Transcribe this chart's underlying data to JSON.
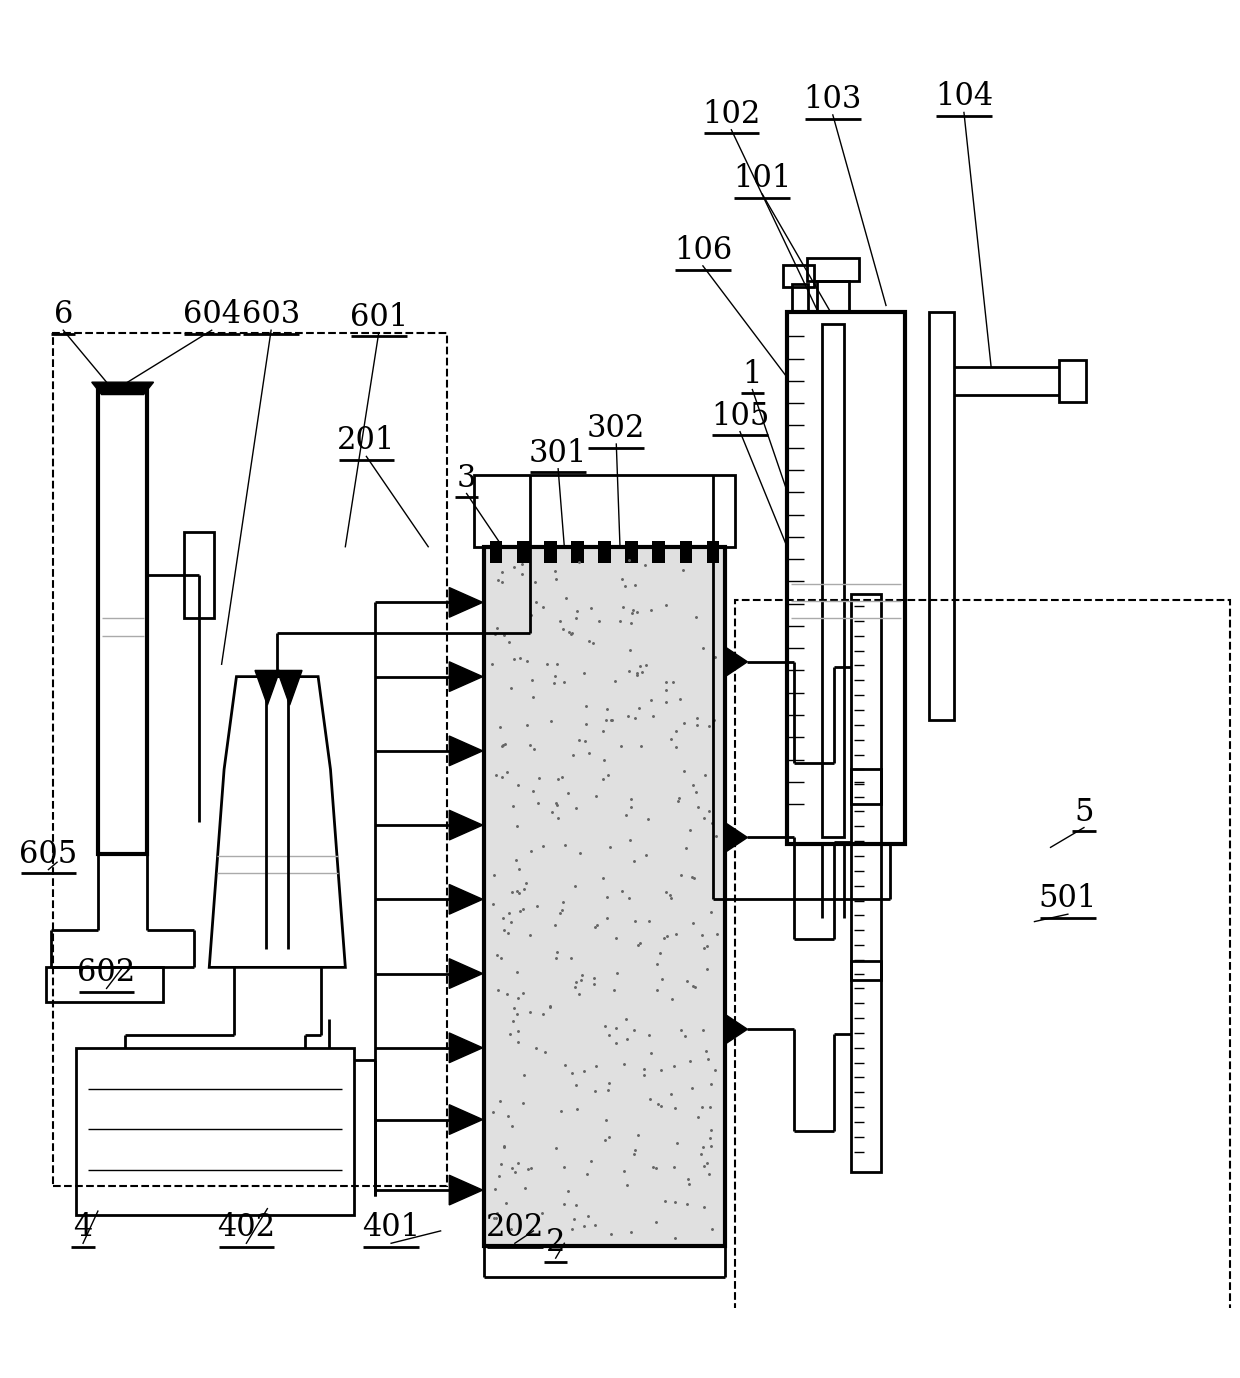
{
  "figsize": [
    12.4,
    13.78
  ],
  "dpi": 100,
  "bg_color": "#ffffff",
  "line_color": "#000000",
  "lw": 2.0,
  "lw_thin": 1.0,
  "lw_thick": 3.0,
  "label_fontsize": 22
}
